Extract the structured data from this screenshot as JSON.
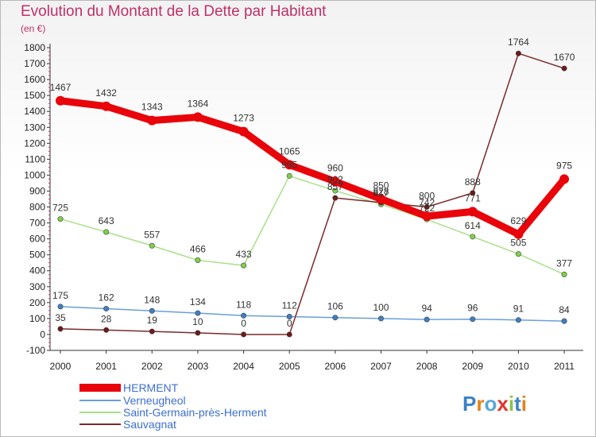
{
  "title": "Evolution du Montant de la Dette par Habitant",
  "subtitle": "(en €)",
  "logo": "Proxiti",
  "chart_data": {
    "type": "line",
    "x": [
      "2000",
      "2001",
      "2002",
      "2003",
      "2004",
      "2005",
      "2006",
      "2007",
      "2008",
      "2009",
      "2010",
      "2011"
    ],
    "ylim": [
      -100,
      1800
    ],
    "yticks": [
      -100,
      0,
      100,
      200,
      300,
      400,
      500,
      600,
      700,
      800,
      900,
      1000,
      1100,
      1200,
      1300,
      1400,
      1500,
      1600,
      1700,
      1800
    ],
    "grid": false,
    "legend_position": "bottom",
    "series": [
      {
        "name": "HERMENT",
        "color": "#e8040a",
        "values": [
          1467,
          1432,
          1343,
          1364,
          1273,
          1065,
          960,
          850,
          742,
          771,
          629,
          975
        ],
        "labels": [
          "1467",
          "1432",
          "1343",
          "1364",
          "1273",
          "1065",
          "960",
          "850",
          "742",
          "771",
          "629",
          "975"
        ]
      },
      {
        "name": "Verneugheol",
        "color": "#6a9fd8",
        "values": [
          175,
          162,
          148,
          134,
          118,
          112,
          106,
          100,
          94,
          96,
          91,
          84
        ],
        "labels": [
          "175",
          "162",
          "148",
          "134",
          "118",
          "112",
          "106",
          "100",
          "94",
          "96",
          "91",
          "84"
        ]
      },
      {
        "name": "Saint-Germain-près-Herment",
        "color": "#a8e08a",
        "values": [
          725,
          643,
          557,
          466,
          433,
          995,
          902,
          817,
          722,
          614,
          505,
          377
        ],
        "labels": [
          "725",
          "643",
          "557",
          "466",
          "433",
          "995",
          "902",
          "817",
          "722",
          "614",
          "505",
          "377"
        ]
      },
      {
        "name": "Sauvagnat",
        "color": "#7b2a2a",
        "values": [
          35,
          28,
          19,
          10,
          0,
          0,
          857,
          828,
          800,
          888,
          1764,
          1670
        ],
        "labels": [
          "35",
          "28",
          "19",
          "10",
          "0",
          "0",
          "857",
          "828",
          "800",
          "888",
          "1764",
          "1670"
        ]
      }
    ]
  }
}
